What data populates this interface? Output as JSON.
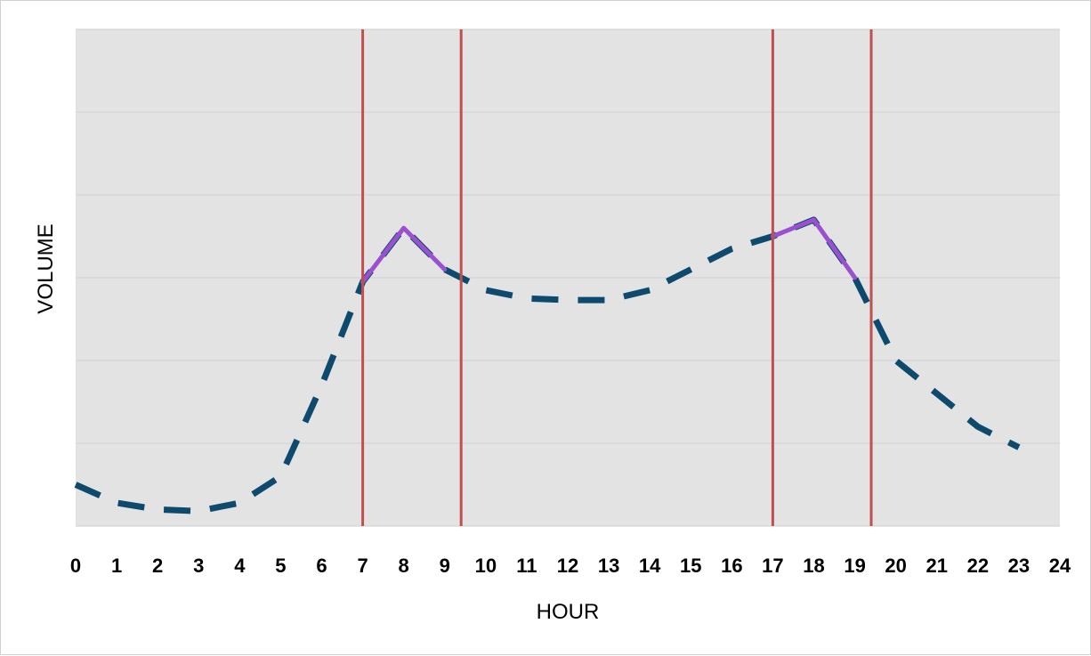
{
  "chart_data": {
    "type": "line",
    "title": "",
    "xlabel": "HOUR",
    "ylabel": "VOLUME",
    "xlim": [
      0,
      24
    ],
    "ylim": [
      0,
      6
    ],
    "x_ticks": [
      0,
      1,
      2,
      3,
      4,
      5,
      6,
      7,
      8,
      9,
      10,
      11,
      12,
      13,
      14,
      15,
      16,
      17,
      18,
      19,
      20,
      21,
      22,
      23,
      24
    ],
    "y_gridlines": [
      1,
      2,
      3,
      4,
      5,
      6
    ],
    "y_tick_labels_shown": false,
    "grid": true,
    "legend": "none",
    "plot_background": "#e3e3e3",
    "series": [
      {
        "style": "dashed",
        "color": "#0e4a6e",
        "x": [
          0,
          1,
          2,
          3,
          4,
          5,
          6,
          7,
          8,
          9,
          10,
          11,
          12,
          13,
          14,
          15,
          16,
          17,
          18,
          19,
          20,
          21,
          22,
          23
        ],
        "y": [
          0.5,
          0.28,
          0.2,
          0.18,
          0.28,
          0.6,
          1.7,
          2.95,
          3.6,
          3.1,
          2.85,
          2.75,
          2.73,
          2.73,
          2.85,
          3.1,
          3.35,
          3.5,
          3.7,
          3.0,
          2.0,
          1.6,
          1.2,
          0.95
        ]
      },
      {
        "style": "solid",
        "color": "#9b50d0",
        "x": [
          7,
          8,
          9
        ],
        "y": [
          2.95,
          3.6,
          3.1
        ]
      },
      {
        "style": "solid",
        "color": "#9b50d0",
        "x": [
          17,
          18,
          19
        ],
        "y": [
          3.5,
          3.7,
          3.0
        ]
      }
    ],
    "vertical_lines": {
      "color": "#c0504d",
      "x": [
        7,
        9.4,
        17,
        19.4
      ]
    }
  }
}
